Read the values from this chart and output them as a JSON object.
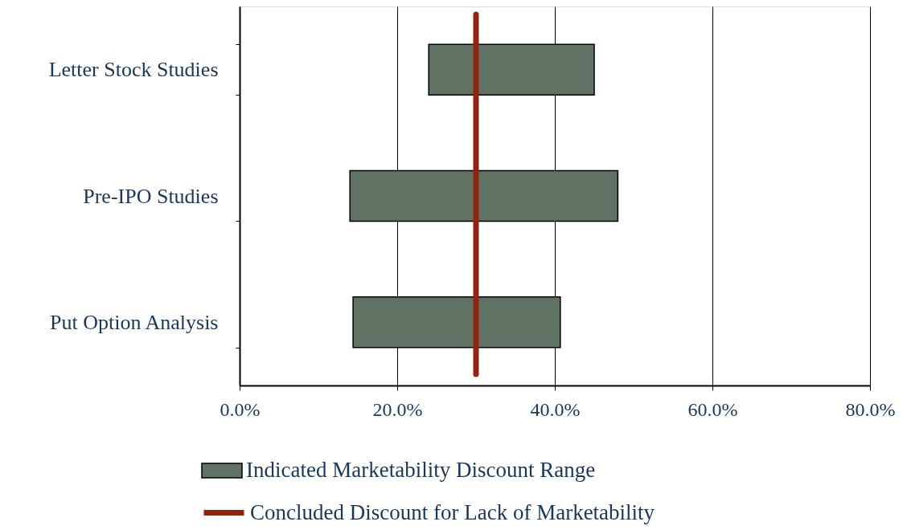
{
  "chart_data": {
    "type": "bar",
    "orientation": "horizontal",
    "categories": [
      "Letter Stock Studies",
      "Pre-IPO Studies",
      "Put Option Analysis"
    ],
    "series": [
      {
        "name": "Indicated Marketability Discount Range",
        "color": "#5f7264",
        "base": [
          24,
          14,
          14.4
        ],
        "values": [
          21,
          34,
          26.3
        ]
      }
    ],
    "xlim": [
      0,
      80
    ],
    "xticks": [
      {
        "value": 0,
        "label": "0.0%"
      },
      {
        "value": 20,
        "label": "20.0%"
      },
      {
        "value": 40,
        "label": "40.0%"
      },
      {
        "value": 60,
        "label": "60.0%"
      },
      {
        "value": 80,
        "label": "80.0%"
      }
    ],
    "ref_lines": [
      {
        "axis": "x",
        "value": 30,
        "label": "Concluded Discount for Lack of Marketability",
        "color": "#92230e"
      }
    ],
    "grid": "x",
    "legend": "bottom"
  }
}
